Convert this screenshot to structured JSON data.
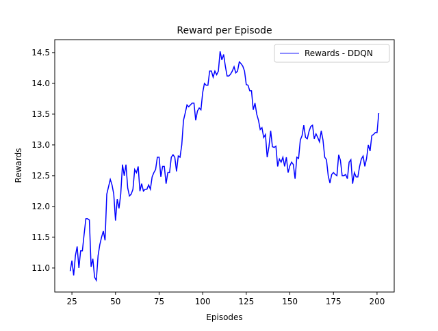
{
  "chart_data": {
    "type": "line",
    "title": "Reward per Episode",
    "x_label": "Episodes",
    "y_label": "Rewards",
    "x": [
      24,
      25,
      26,
      27,
      28,
      29,
      30,
      31,
      32,
      33,
      34,
      35,
      36,
      37,
      38,
      39,
      40,
      41,
      42,
      43,
      44,
      45,
      46,
      47,
      48,
      49,
      50,
      51,
      52,
      53,
      54,
      55,
      56,
      57,
      58,
      59,
      60,
      61,
      62,
      63,
      64,
      65,
      66,
      67,
      68,
      69,
      70,
      71,
      72,
      73,
      74,
      75,
      76,
      77,
      78,
      79,
      80,
      81,
      82,
      83,
      84,
      85,
      86,
      87,
      88,
      89,
      90,
      91,
      92,
      93,
      94,
      95,
      96,
      97,
      98,
      99,
      100,
      101,
      102,
      103,
      104,
      105,
      106,
      107,
      108,
      109,
      110,
      111,
      112,
      113,
      114,
      115,
      116,
      117,
      118,
      119,
      120,
      121,
      122,
      123,
      124,
      125,
      126,
      127,
      128,
      129,
      130,
      131,
      132,
      133,
      134,
      135,
      136,
      137,
      138,
      139,
      140,
      141,
      142,
      143,
      144,
      145,
      146,
      147,
      148,
      149,
      150,
      151,
      152,
      153,
      154,
      155,
      156,
      157,
      158,
      159,
      160,
      161,
      162,
      163,
      164,
      165,
      166,
      167,
      168,
      169,
      170,
      171,
      172,
      173,
      174,
      175,
      176,
      177,
      178,
      179,
      180,
      181,
      182,
      183,
      184,
      185,
      186,
      187,
      188,
      189,
      190,
      191,
      192,
      193,
      194,
      195,
      196,
      197,
      198,
      199,
      200,
      201
    ],
    "series": [
      {
        "name": "Rewards - DDQN",
        "color": "#0000ff",
        "values": [
          10.95,
          11.12,
          10.88,
          11.2,
          11.35,
          11.0,
          11.28,
          11.28,
          11.55,
          11.8,
          11.8,
          11.78,
          11.02,
          11.15,
          10.85,
          10.8,
          11.2,
          11.38,
          11.5,
          11.6,
          11.45,
          12.2,
          12.32,
          12.44,
          12.35,
          12.2,
          11.77,
          12.12,
          11.97,
          12.2,
          12.68,
          12.5,
          12.68,
          12.3,
          12.17,
          12.2,
          12.28,
          12.6,
          12.55,
          12.65,
          12.25,
          12.37,
          12.25,
          12.28,
          12.28,
          12.35,
          12.28,
          12.48,
          12.55,
          12.6,
          12.8,
          12.8,
          12.48,
          12.65,
          12.65,
          12.37,
          12.55,
          12.55,
          12.8,
          12.84,
          12.8,
          12.57,
          12.82,
          12.8,
          13.0,
          13.4,
          13.52,
          13.65,
          13.62,
          13.65,
          13.68,
          13.68,
          13.4,
          13.55,
          13.6,
          13.57,
          13.85,
          14.0,
          13.97,
          13.97,
          14.2,
          14.2,
          14.1,
          14.2,
          14.14,
          14.2,
          14.52,
          14.38,
          14.47,
          14.28,
          14.12,
          14.12,
          14.15,
          14.2,
          14.27,
          14.17,
          14.2,
          14.35,
          14.32,
          14.28,
          14.2,
          13.98,
          13.97,
          13.88,
          13.88,
          13.57,
          13.68,
          13.5,
          13.4,
          13.25,
          13.28,
          13.12,
          13.17,
          12.8,
          12.97,
          13.23,
          12.97,
          12.96,
          12.98,
          12.65,
          12.77,
          12.72,
          12.8,
          12.65,
          12.8,
          12.55,
          12.66,
          12.72,
          12.68,
          12.45,
          12.8,
          12.78,
          13.08,
          13.15,
          13.32,
          13.12,
          13.1,
          13.22,
          13.3,
          13.32,
          13.1,
          13.18,
          13.12,
          13.05,
          13.23,
          13.08,
          12.8,
          12.76,
          12.5,
          12.38,
          12.52,
          12.55,
          12.52,
          12.5,
          12.84,
          12.75,
          12.5,
          12.5,
          12.52,
          12.45,
          12.72,
          12.76,
          12.37,
          12.55,
          12.48,
          12.48,
          12.65,
          12.77,
          12.82,
          12.65,
          12.78,
          13.0,
          12.9,
          13.15,
          13.17,
          13.2,
          13.2,
          13.52
        ]
      }
    ],
    "xlim": [
      15.15,
      209.85
    ],
    "ylim": [
      10.61,
      14.71
    ],
    "xticks": [
      25,
      50,
      75,
      100,
      125,
      150,
      175,
      200
    ],
    "yticks": [
      {
        "value": 11,
        "label": "11.0"
      },
      11.5,
      {
        "value": 12,
        "label": "12.0"
      },
      12.5,
      {
        "value": 13,
        "label": "13.0"
      },
      13.5,
      {
        "value": 14,
        "label": "14.0"
      },
      14.5
    ],
    "legend": "upper right",
    "grid": false
  }
}
